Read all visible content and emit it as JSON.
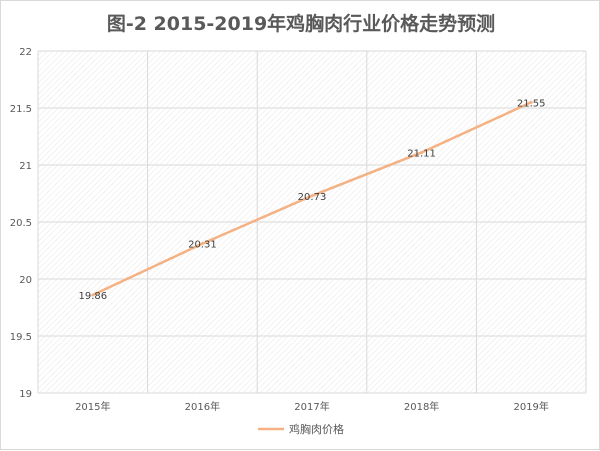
{
  "chart_data": {
    "type": "line",
    "title": "图-2 2015-2019年鸡胸肉行业价格走势预测",
    "categories": [
      "2015年",
      "2016年",
      "2017年",
      "2018年",
      "2019年"
    ],
    "series": [
      {
        "name": "鸡胸肉价格",
        "values": [
          19.86,
          20.31,
          20.73,
          21.11,
          21.55
        ],
        "color": "#f4b183"
      }
    ],
    "ylim": [
      19,
      22
    ],
    "ytick_labels": [
      "19",
      "19.5",
      "20",
      "20.5",
      "21",
      "21.5",
      "22"
    ],
    "grid": true,
    "plot_fill": "diagonal-hatch",
    "legend_position": "bottom",
    "data_labels": true
  }
}
